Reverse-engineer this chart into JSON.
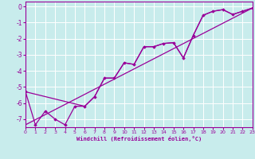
{
  "xlabel": "Windchill (Refroidissement éolien,°C)",
  "bg_color": "#c8ecec",
  "grid_color": "#ffffff",
  "line_color": "#990099",
  "x_min": 0,
  "x_max": 23,
  "y_min": -7.5,
  "y_max": 0.3,
  "yticks": [
    0,
    -1,
    -2,
    -3,
    -4,
    -5,
    -6,
    -7
  ],
  "xticks": [
    0,
    1,
    2,
    3,
    4,
    5,
    6,
    7,
    8,
    9,
    10,
    11,
    12,
    13,
    14,
    15,
    16,
    17,
    18,
    19,
    20,
    21,
    22,
    23
  ],
  "line1_x": [
    0,
    1,
    2,
    3,
    4,
    5,
    6,
    7,
    8,
    9,
    10,
    11,
    12,
    13,
    14,
    15,
    16,
    17,
    18,
    19,
    20,
    21,
    22,
    23
  ],
  "line1_y": [
    -5.3,
    -7.35,
    -6.5,
    -7.0,
    -7.35,
    -6.2,
    -6.2,
    -5.6,
    -4.45,
    -4.45,
    -3.5,
    -3.6,
    -2.5,
    -2.5,
    -2.3,
    -2.25,
    -3.2,
    -1.8,
    -0.55,
    -0.3,
    -0.2,
    -0.5,
    -0.3,
    -0.1
  ],
  "line2_x": [
    0,
    6,
    7,
    8,
    9,
    10,
    11,
    12,
    13,
    14,
    15,
    16,
    17,
    18,
    19,
    20,
    21,
    22,
    23
  ],
  "line2_y": [
    -5.3,
    -6.2,
    -5.6,
    -4.45,
    -4.45,
    -3.5,
    -3.6,
    -2.5,
    -2.5,
    -2.3,
    -2.25,
    -3.2,
    -1.8,
    -0.55,
    -0.3,
    -0.2,
    -0.5,
    -0.3,
    -0.1
  ],
  "line3_x": [
    0,
    23
  ],
  "line3_y": [
    -7.35,
    -0.1
  ]
}
